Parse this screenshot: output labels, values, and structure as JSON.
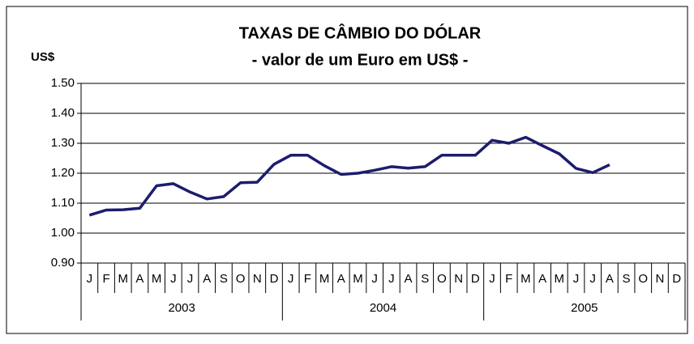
{
  "chart_data": {
    "type": "line",
    "title": "TAXAS DE CÂMBIO DO DÓLAR",
    "subtitle": "- valor de um Euro em US$ -",
    "y_label": "US$",
    "categories": [
      "J",
      "F",
      "M",
      "A",
      "M",
      "J",
      "J",
      "A",
      "S",
      "O",
      "N",
      "D",
      "J",
      "F",
      "M",
      "A",
      "M",
      "J",
      "J",
      "A",
      "S",
      "O",
      "N",
      "D",
      "J",
      "F",
      "M",
      "A",
      "M",
      "J",
      "J",
      "A",
      "S",
      "O",
      "N",
      "D"
    ],
    "year_groups": [
      "2003",
      "2004",
      "2005"
    ],
    "values": [
      1.06,
      1.077,
      1.078,
      1.083,
      1.158,
      1.165,
      1.137,
      1.114,
      1.122,
      1.168,
      1.17,
      1.23,
      1.26,
      1.26,
      1.225,
      1.196,
      1.2,
      1.21,
      1.222,
      1.217,
      1.222,
      1.26,
      1.26,
      1.26,
      1.31,
      1.3,
      1.32,
      1.292,
      1.265,
      1.216,
      1.202,
      1.228,
      null,
      null,
      null,
      null
    ],
    "color": "#1c1c6e",
    "ylim": [
      0.9,
      1.5
    ],
    "yticks": [
      {
        "value": 0.9,
        "label": "0.90"
      },
      {
        "value": 1.0,
        "label": "1.00"
      },
      {
        "value": 1.1,
        "label": "1.10"
      },
      {
        "value": 1.2,
        "label": "1.20"
      },
      {
        "value": 1.3,
        "label": "1.30"
      },
      {
        "value": 1.4,
        "label": "1.40"
      },
      {
        "value": 1.5,
        "label": "1.50"
      }
    ],
    "grid": true
  }
}
